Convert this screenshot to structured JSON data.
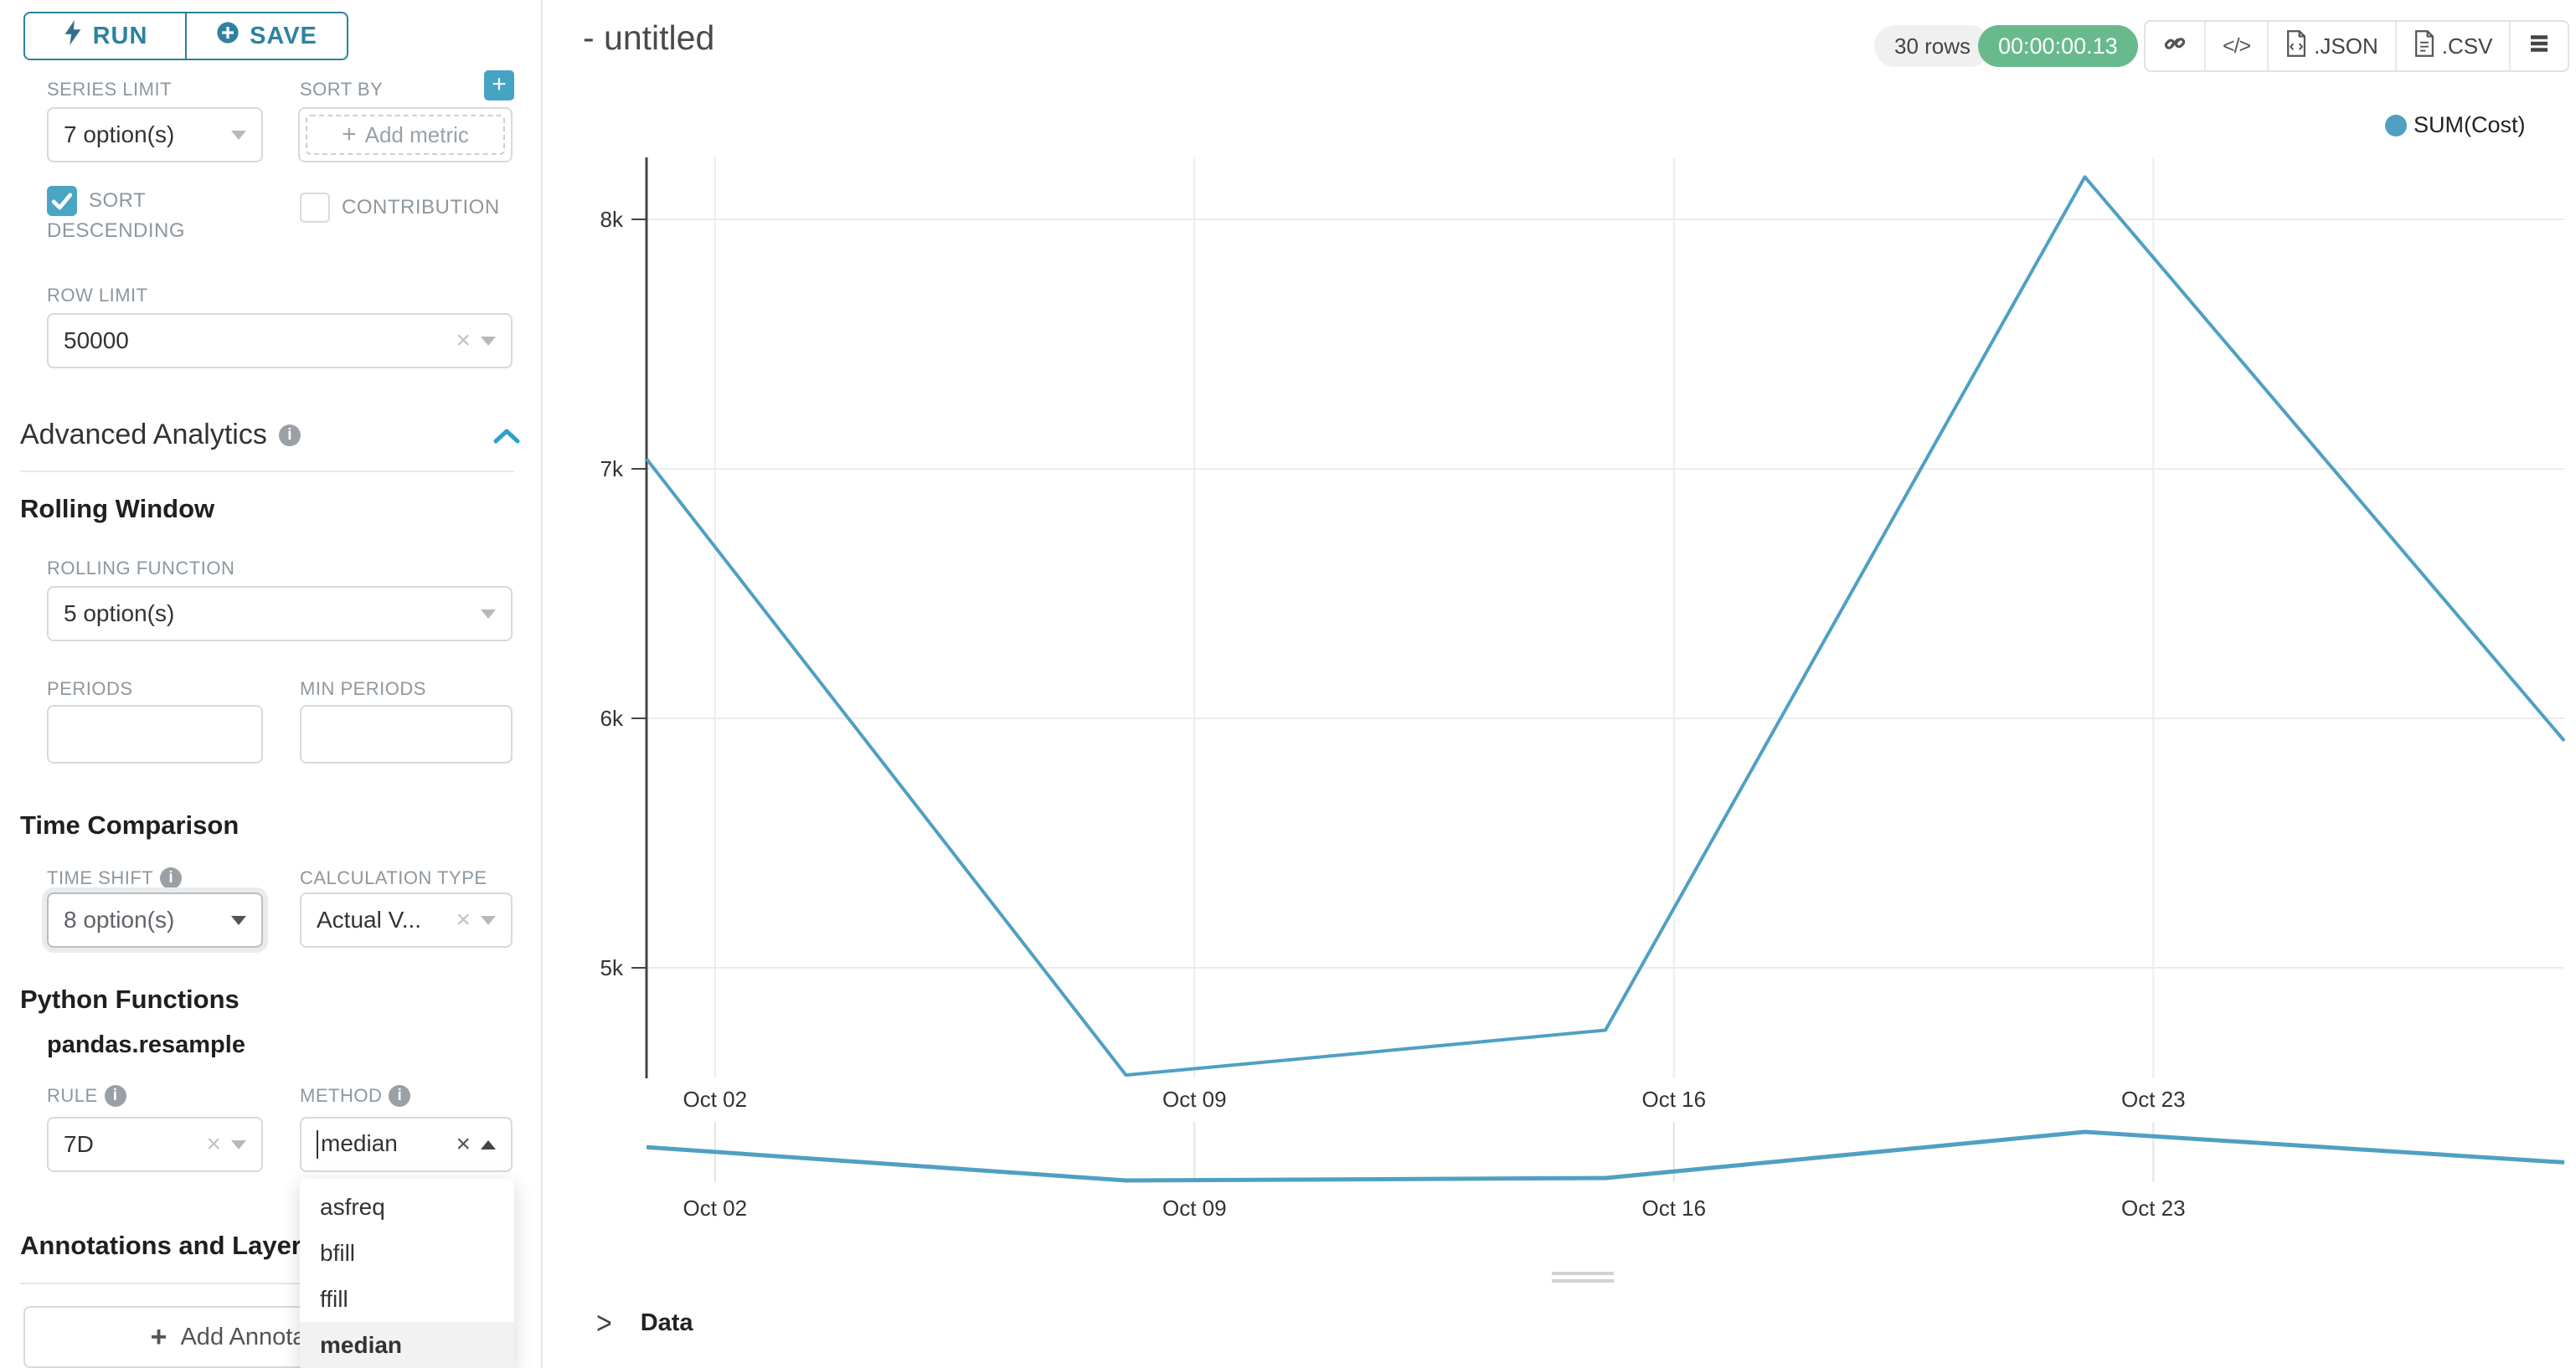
{
  "sidebar": {
    "run_label": "RUN",
    "save_label": "SAVE",
    "series_limit_label": "SERIES LIMIT",
    "series_limit_value": "7 option(s)",
    "sort_by_label": "SORT BY",
    "add_metric_label": "Add metric",
    "sort_descending_label": "SORT DESCENDING",
    "contribution_label": "CONTRIBUTION",
    "row_limit_label": "ROW LIMIT",
    "row_limit_value": "50000",
    "advanced_analytics_title": "Advanced Analytics",
    "rolling_window_title": "Rolling Window",
    "rolling_function_label": "ROLLING FUNCTION",
    "rolling_function_value": "5 option(s)",
    "periods_label": "PERIODS",
    "min_periods_label": "MIN PERIODS",
    "time_comparison_title": "Time Comparison",
    "time_shift_label": "TIME SHIFT",
    "time_shift_value": "8 option(s)",
    "calculation_type_label": "CALCULATION TYPE",
    "calculation_type_value": "Actual V...",
    "python_functions_title": "Python Functions",
    "pandas_resample_label": "pandas.resample",
    "rule_label": "RULE",
    "rule_value": "7D",
    "method_label": "METHOD",
    "method_value": "median",
    "method_options": [
      "asfreq",
      "bfill",
      "ffill",
      "median"
    ],
    "method_selected": "median",
    "annotations_title": "Annotations and Layers",
    "add_annotation_label": "Add Annotation L"
  },
  "header": {
    "title": "- untitled",
    "rows_badge": "30 rows",
    "timer": "00:00:00.13",
    "code_label": "</>",
    "json_label": ".JSON",
    "csv_label": ".CSV"
  },
  "legend": {
    "label": "SUM(Cost)",
    "color": "#4fa0c3"
  },
  "data_panel": {
    "title": "Data"
  },
  "chart_data": {
    "type": "line",
    "title": "",
    "xlabel": "",
    "ylabel": "",
    "grid": true,
    "legend_position": "top-right",
    "series": [
      {
        "name": "SUM(Cost)",
        "x_dates": [
          "Oct 01",
          "Oct 08",
          "Oct 15",
          "Oct 22",
          "Oct 29"
        ],
        "x_days": [
          0,
          7,
          14,
          21,
          28
        ],
        "values": [
          7040,
          4570,
          4750,
          8170,
          5910
        ]
      }
    ],
    "x_ticks": {
      "labels": [
        "Oct 02",
        "Oct 09",
        "Oct 16",
        "Oct 23"
      ],
      "days": [
        1,
        8,
        15,
        22
      ]
    },
    "y_ticks": {
      "labels": [
        "8k",
        "7k",
        "6k",
        "5k"
      ],
      "values": [
        8000,
        7000,
        6000,
        5000
      ]
    },
    "ylim": [
      4560,
      8240
    ],
    "line_color": "#4fa0c3",
    "navigator": true
  }
}
